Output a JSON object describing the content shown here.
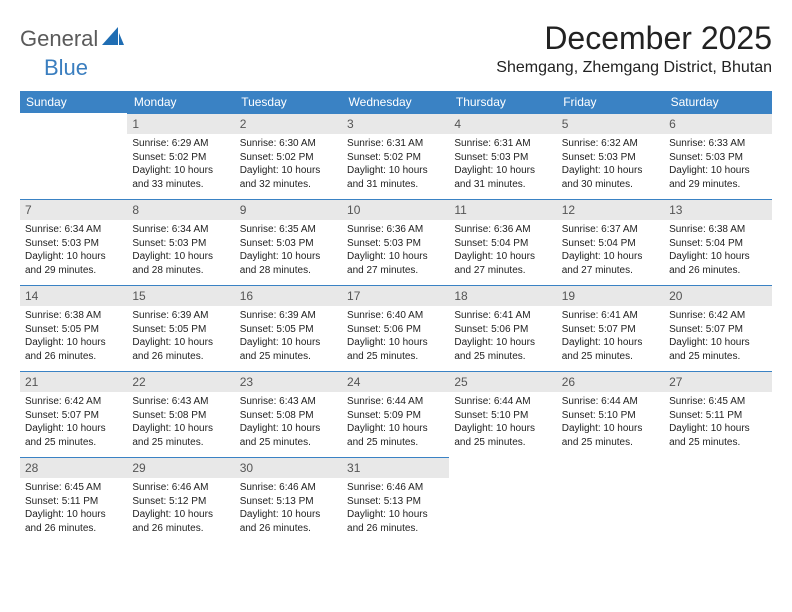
{
  "brand": {
    "part1": "General",
    "part2": "Blue"
  },
  "title": "December 2025",
  "location": "Shemgang, Zhemgang District, Bhutan",
  "colors": {
    "header_bg": "#3a82c4",
    "header_text": "#ffffff",
    "daynum_bg": "#e8e8e8",
    "daynum_border": "#3a82c4",
    "body_text": "#222222",
    "logo_gray": "#5a5a5a",
    "logo_blue": "#3a7ebf"
  },
  "weekdays": [
    "Sunday",
    "Monday",
    "Tuesday",
    "Wednesday",
    "Thursday",
    "Friday",
    "Saturday"
  ],
  "first_weekday_offset": 1,
  "days": [
    {
      "n": 1,
      "sunrise": "6:29 AM",
      "sunset": "5:02 PM",
      "daylight": "10 hours and 33 minutes."
    },
    {
      "n": 2,
      "sunrise": "6:30 AM",
      "sunset": "5:02 PM",
      "daylight": "10 hours and 32 minutes."
    },
    {
      "n": 3,
      "sunrise": "6:31 AM",
      "sunset": "5:02 PM",
      "daylight": "10 hours and 31 minutes."
    },
    {
      "n": 4,
      "sunrise": "6:31 AM",
      "sunset": "5:03 PM",
      "daylight": "10 hours and 31 minutes."
    },
    {
      "n": 5,
      "sunrise": "6:32 AM",
      "sunset": "5:03 PM",
      "daylight": "10 hours and 30 minutes."
    },
    {
      "n": 6,
      "sunrise": "6:33 AM",
      "sunset": "5:03 PM",
      "daylight": "10 hours and 29 minutes."
    },
    {
      "n": 7,
      "sunrise": "6:34 AM",
      "sunset": "5:03 PM",
      "daylight": "10 hours and 29 minutes."
    },
    {
      "n": 8,
      "sunrise": "6:34 AM",
      "sunset": "5:03 PM",
      "daylight": "10 hours and 28 minutes."
    },
    {
      "n": 9,
      "sunrise": "6:35 AM",
      "sunset": "5:03 PM",
      "daylight": "10 hours and 28 minutes."
    },
    {
      "n": 10,
      "sunrise": "6:36 AM",
      "sunset": "5:03 PM",
      "daylight": "10 hours and 27 minutes."
    },
    {
      "n": 11,
      "sunrise": "6:36 AM",
      "sunset": "5:04 PM",
      "daylight": "10 hours and 27 minutes."
    },
    {
      "n": 12,
      "sunrise": "6:37 AM",
      "sunset": "5:04 PM",
      "daylight": "10 hours and 27 minutes."
    },
    {
      "n": 13,
      "sunrise": "6:38 AM",
      "sunset": "5:04 PM",
      "daylight": "10 hours and 26 minutes."
    },
    {
      "n": 14,
      "sunrise": "6:38 AM",
      "sunset": "5:05 PM",
      "daylight": "10 hours and 26 minutes."
    },
    {
      "n": 15,
      "sunrise": "6:39 AM",
      "sunset": "5:05 PM",
      "daylight": "10 hours and 26 minutes."
    },
    {
      "n": 16,
      "sunrise": "6:39 AM",
      "sunset": "5:05 PM",
      "daylight": "10 hours and 25 minutes."
    },
    {
      "n": 17,
      "sunrise": "6:40 AM",
      "sunset": "5:06 PM",
      "daylight": "10 hours and 25 minutes."
    },
    {
      "n": 18,
      "sunrise": "6:41 AM",
      "sunset": "5:06 PM",
      "daylight": "10 hours and 25 minutes."
    },
    {
      "n": 19,
      "sunrise": "6:41 AM",
      "sunset": "5:07 PM",
      "daylight": "10 hours and 25 minutes."
    },
    {
      "n": 20,
      "sunrise": "6:42 AM",
      "sunset": "5:07 PM",
      "daylight": "10 hours and 25 minutes."
    },
    {
      "n": 21,
      "sunrise": "6:42 AM",
      "sunset": "5:07 PM",
      "daylight": "10 hours and 25 minutes."
    },
    {
      "n": 22,
      "sunrise": "6:43 AM",
      "sunset": "5:08 PM",
      "daylight": "10 hours and 25 minutes."
    },
    {
      "n": 23,
      "sunrise": "6:43 AM",
      "sunset": "5:08 PM",
      "daylight": "10 hours and 25 minutes."
    },
    {
      "n": 24,
      "sunrise": "6:44 AM",
      "sunset": "5:09 PM",
      "daylight": "10 hours and 25 minutes."
    },
    {
      "n": 25,
      "sunrise": "6:44 AM",
      "sunset": "5:10 PM",
      "daylight": "10 hours and 25 minutes."
    },
    {
      "n": 26,
      "sunrise": "6:44 AM",
      "sunset": "5:10 PM",
      "daylight": "10 hours and 25 minutes."
    },
    {
      "n": 27,
      "sunrise": "6:45 AM",
      "sunset": "5:11 PM",
      "daylight": "10 hours and 25 minutes."
    },
    {
      "n": 28,
      "sunrise": "6:45 AM",
      "sunset": "5:11 PM",
      "daylight": "10 hours and 26 minutes."
    },
    {
      "n": 29,
      "sunrise": "6:46 AM",
      "sunset": "5:12 PM",
      "daylight": "10 hours and 26 minutes."
    },
    {
      "n": 30,
      "sunrise": "6:46 AM",
      "sunset": "5:13 PM",
      "daylight": "10 hours and 26 minutes."
    },
    {
      "n": 31,
      "sunrise": "6:46 AM",
      "sunset": "5:13 PM",
      "daylight": "10 hours and 26 minutes."
    }
  ],
  "labels": {
    "sunrise": "Sunrise:",
    "sunset": "Sunset:",
    "daylight": "Daylight:"
  }
}
